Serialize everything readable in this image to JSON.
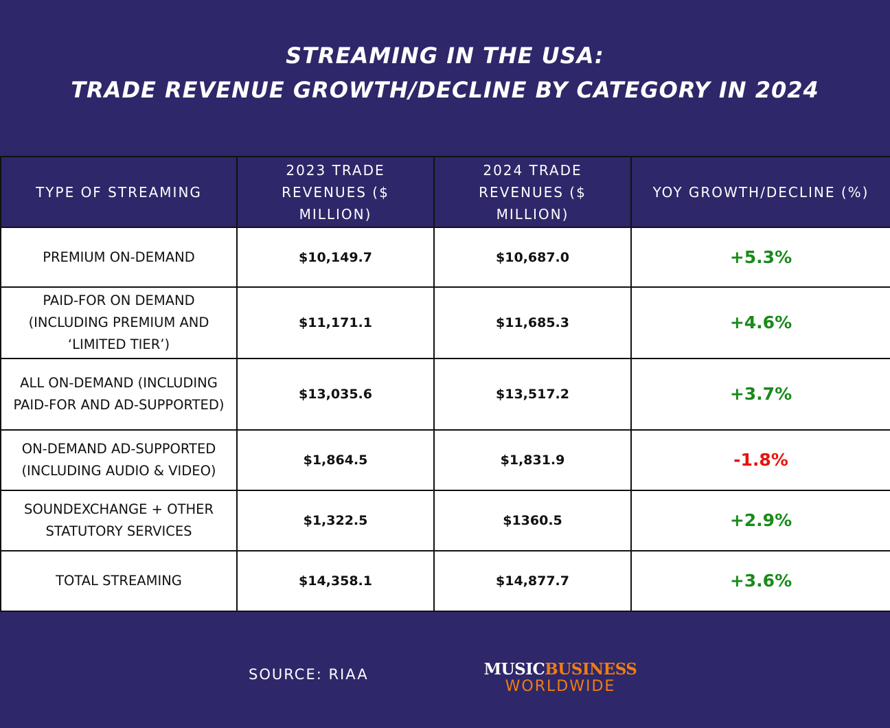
{
  "title_line1": "STREAMING IN THE USA:",
  "title_line2": "TRADE REVENUE GROWTH/DECLINE BY CATEGORY IN 2024",
  "colors": {
    "background": "#2e2769",
    "growth": "#1a8a1a",
    "decline": "#e8130c",
    "brand_orange": "#f07d12"
  },
  "chart_data": {
    "type": "table",
    "columns": [
      "TYPE OF STREAMING",
      "2023 TRADE REVENUES ($ MILLION)",
      "2024 TRADE REVENUES ($ MILLION)",
      "YOY GROWTH/DECLINE (%)"
    ],
    "rows": [
      {
        "type": "PREMIUM ON-DEMAND",
        "rev2023": "$10,149.7",
        "rev2024": "$10,687.0",
        "yoy": "+5.3%",
        "trend": "growth"
      },
      {
        "type": "PAID-FOR ON DEMAND (INCLUDING PREMIUM AND ‘LIMITED TIER’)",
        "rev2023": "$11,171.1",
        "rev2024": "$11,685.3",
        "yoy": "+4.6%",
        "trend": "growth"
      },
      {
        "type": "ALL ON-DEMAND (INCLUDING PAID-FOR AND AD-SUPPORTED)",
        "rev2023": "$13,035.6",
        "rev2024": "$13,517.2",
        "yoy": "+3.7%",
        "trend": "growth"
      },
      {
        "type": "ON-DEMAND AD-SUPPORTED (INCLUDING AUDIO & VIDEO)",
        "rev2023": "$1,864.5",
        "rev2024": "$1,831.9",
        "yoy": "-1.8%",
        "trend": "decline"
      },
      {
        "type": "SOUNDEXCHANGE + OTHER STATUTORY SERVICES",
        "rev2023": "$1,322.5",
        "rev2024": "$1360.5",
        "yoy": "+2.9%",
        "trend": "growth"
      },
      {
        "type": "TOTAL STREAMING",
        "rev2023": "$14,358.1",
        "rev2024": "$14,877.7",
        "yoy": "+3.6%",
        "trend": "growth"
      }
    ]
  },
  "source": "SOURCE: RIAA",
  "logo": {
    "part1": "MUSIC",
    "part2": "BUSINESS",
    "part3": "WORLDWIDE"
  }
}
